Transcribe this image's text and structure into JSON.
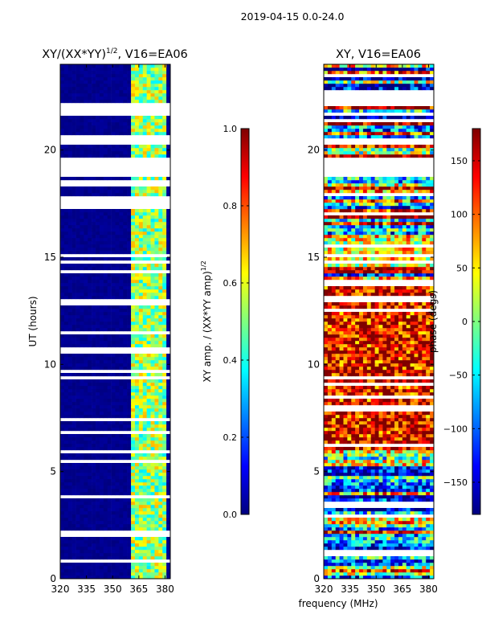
{
  "suptitle": "2019-04-15 0.0-24.0",
  "shared_xlabel": "frequency (MHz)",
  "colors": {
    "jet": [
      "#00007f",
      "#0000ff",
      "#007fff",
      "#00ffff",
      "#7fff7f",
      "#ffff00",
      "#ff7f00",
      "#ff0000",
      "#7f0000"
    ],
    "missing": "#ffffff",
    "axis": "#000000"
  },
  "chart_data": [
    {
      "type": "heatmap",
      "title": "XY/(XX*YY)",
      "title_exponent": "1/2",
      "title_suffix": ", V16=EA06",
      "xlabel": "",
      "ylabel": "UT (hours)",
      "xlim": [
        320,
        383
      ],
      "ylim": [
        0,
        24
      ],
      "xticks": [
        "320",
        "335",
        "350",
        "365",
        "380"
      ],
      "xtick_values": [
        320,
        335,
        350,
        365,
        380
      ],
      "yticks": [
        "0",
        "5",
        "10",
        "15",
        "20"
      ],
      "ytick_values": [
        0,
        5,
        10,
        15,
        20
      ],
      "mode": "amplitude",
      "colorbar": {
        "label": "XY amp. / (XX*YY amp)",
        "label_exponent": "1/2",
        "range": [
          0.0,
          1.0
        ],
        "ticks": [
          "0.0",
          "0.2",
          "0.4",
          "0.6",
          "0.8",
          "1.0"
        ],
        "tick_values": [
          0.0,
          0.2,
          0.4,
          0.6,
          0.8,
          1.0
        ]
      },
      "blank_ut_bands": [
        [
          18.7,
          19.7
        ],
        [
          20.2,
          20.7
        ],
        [
          21.8,
          22.2
        ],
        [
          17.3,
          17.9
        ],
        [
          15.0,
          15.2
        ],
        [
          14.2,
          14.4
        ],
        [
          0.7,
          0.9
        ],
        [
          2.0,
          2.3
        ],
        [
          3.7,
          3.9
        ],
        [
          5.8,
          6.0
        ],
        [
          7.3,
          7.5
        ],
        [
          12.9,
          13.1
        ]
      ],
      "high_freq_band_mhz": [
        360,
        381
      ],
      "background_value": 0.0
    },
    {
      "type": "heatmap",
      "title": "XY, V16=EA06",
      "title_exponent": "",
      "title_suffix": "",
      "xlabel": "",
      "ylabel": "",
      "xlim": [
        320,
        383
      ],
      "ylim": [
        0,
        24
      ],
      "xticks": [
        "320",
        "335",
        "350",
        "365",
        "380"
      ],
      "xtick_values": [
        320,
        335,
        350,
        365,
        380
      ],
      "yticks": [
        "0",
        "5",
        "10",
        "15",
        "20"
      ],
      "ytick_values": [
        0,
        5,
        10,
        15,
        20
      ],
      "mode": "phase",
      "colorbar": {
        "label": "phase (degs)",
        "label_exponent": "",
        "range": [
          -180,
          180
        ],
        "ticks": [
          "−150",
          "−100",
          "−50",
          "0",
          "50",
          "100",
          "150"
        ],
        "tick_values": [
          -150,
          -100,
          -50,
          0,
          50,
          100,
          150
        ]
      },
      "blank_ut_bands": [
        [
          18.7,
          19.7
        ],
        [
          22.0,
          22.8
        ],
        [
          20.2,
          20.5
        ],
        [
          21.6,
          21.8
        ],
        [
          15.0,
          15.2
        ],
        [
          12.9,
          13.1
        ]
      ]
    }
  ]
}
